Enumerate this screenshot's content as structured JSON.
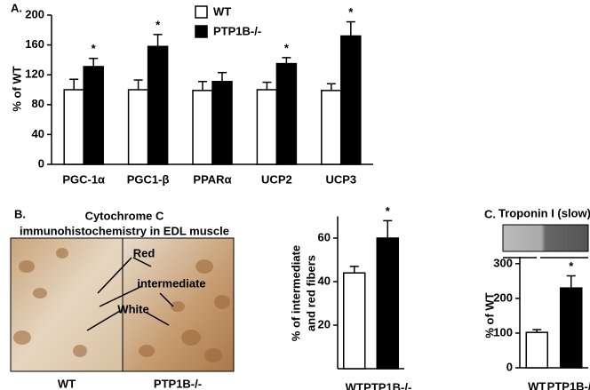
{
  "chart_data": [
    {
      "type": "bar",
      "panel_label": "A.",
      "ylabel": "% of WT",
      "categories": [
        "PGC-1α",
        "PGC1-β",
        "PPARα",
        "UCP2",
        "UCP3"
      ],
      "series": [
        {
          "name": "WT",
          "color": "#ffffff",
          "values": [
            100,
            100,
            99,
            100,
            99
          ],
          "errors": [
            14,
            13,
            12,
            10,
            9
          ]
        },
        {
          "name": "PTP1B-/-",
          "color": "#000000",
          "values": [
            131,
            158,
            111,
            135,
            172
          ],
          "errors": [
            11,
            16,
            12,
            8,
            19
          ]
        }
      ],
      "significance_labels": [
        "*",
        "*",
        null,
        "*",
        "*"
      ],
      "ylim": [
        0,
        200
      ],
      "yticks": [
        0,
        40,
        80,
        120,
        160,
        200
      ]
    },
    {
      "type": "bar",
      "panel_label": "B.",
      "title_lines": [
        "Cytochrome C",
        "immunohistochemistry in EDL muscle"
      ],
      "image_labels": [
        "Red",
        "intermediate",
        "White"
      ],
      "image_captions": [
        "WT",
        "PTP1B-/-"
      ],
      "ylabel_lines": [
        "% of intermediate",
        "and red fibers"
      ],
      "categories": [
        "WT",
        "PTP1B-/-"
      ],
      "values": [
        44,
        60
      ],
      "errors": [
        3,
        8
      ],
      "colors": [
        "#ffffff",
        "#000000"
      ],
      "significance_labels": [
        null,
        "*"
      ],
      "ylim": [
        0,
        70
      ],
      "yticks": [
        20,
        40,
        60
      ]
    },
    {
      "type": "bar",
      "panel_label": "C.",
      "blot_label": "Troponin I (slow)",
      "ylabel": "% of WT",
      "categories": [
        "WT",
        "PTP1B-/-"
      ],
      "values": [
        102,
        230
      ],
      "errors": [
        8,
        35
      ],
      "colors": [
        "#ffffff",
        "#000000"
      ],
      "significance_labels": [
        null,
        "*"
      ],
      "ylim": [
        0,
        320
      ],
      "yticks": [
        0,
        100,
        200,
        300
      ]
    }
  ]
}
